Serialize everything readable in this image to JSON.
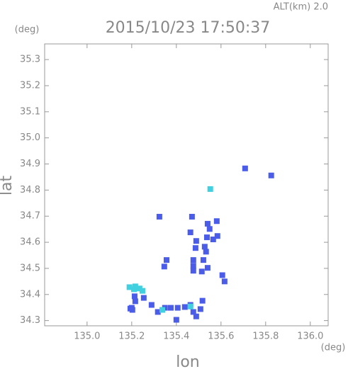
{
  "chart_data": {
    "type": "scatter",
    "title": "2015/10/23 17:50:37",
    "subtitle": "ALT(km)  2.0",
    "y_unit": "(deg)",
    "x_unit": "(deg)",
    "x_label": "lon",
    "y_label": "lat",
    "xlim": [
      134.81,
      136.08
    ],
    "ylim": [
      34.28,
      35.36
    ],
    "xticks": [
      {
        "value": 135,
        "label": "135.0"
      },
      135.2,
      135.4,
      135.6,
      135.8,
      {
        "value": 136,
        "label": "136.0"
      }
    ],
    "yticks": [
      34.3,
      34.4,
      34.5,
      34.6,
      34.7,
      34.8,
      34.9,
      {
        "value": 35,
        "label": "35.0"
      },
      35.1,
      35.2,
      35.3
    ],
    "series": [
      {
        "color": "#4a5ce8",
        "x": [
          135.489,
          135.476,
          135.508,
          135.517,
          135.463,
          135.438,
          135.406,
          135.375,
          135.349,
          135.317,
          135.213,
          135.216,
          135.2,
          135.203,
          135.194,
          135.476,
          135.476,
          135.476,
          135.514,
          135.54,
          135.521,
          135.533,
          135.527,
          135.486,
          135.489,
          135.463,
          135.537,
          135.565,
          135.584,
          135.47,
          135.549,
          135.346,
          135.356,
          135.324,
          135.606,
          135.616,
          135.581,
          135.54,
          135.708,
          135.825,
          135.4,
          135.289,
          135.254
        ],
        "values": [
          34.316,
          34.333,
          34.344,
          34.376,
          34.36,
          34.352,
          34.349,
          34.349,
          34.349,
          34.333,
          34.393,
          34.374,
          34.349,
          34.341,
          34.346,
          34.532,
          34.51,
          34.491,
          34.488,
          34.502,
          34.532,
          34.564,
          34.583,
          34.578,
          34.605,
          34.638,
          34.619,
          34.611,
          34.624,
          34.698,
          34.651,
          34.507,
          34.532,
          34.698,
          34.474,
          34.45,
          34.681,
          34.671,
          34.883,
          34.856,
          34.303,
          34.36,
          34.387
        ]
      },
      {
        "color": "#40d0e0",
        "x": [
          135.19,
          135.21,
          135.248,
          135.216,
          135.235,
          135.337,
          135.463,
          135.552
        ],
        "values": [
          34.428,
          34.42,
          34.414,
          34.431,
          34.423,
          34.341,
          34.354,
          34.804
        ]
      }
    ]
  }
}
